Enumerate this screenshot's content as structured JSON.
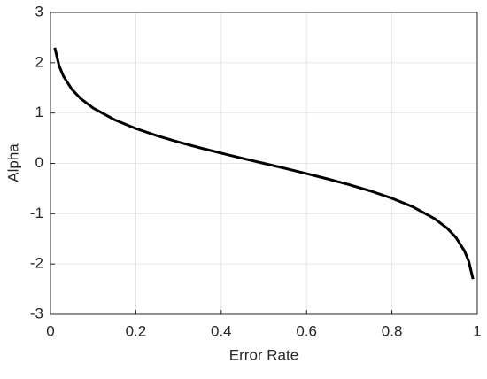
{
  "chart_data": {
    "type": "line",
    "xlabel": "Error Rate",
    "ylabel": "Alpha",
    "x": [
      0.01,
      0.02,
      0.03,
      0.05,
      0.07,
      0.1,
      0.15,
      0.2,
      0.25,
      0.3,
      0.35,
      0.4,
      0.45,
      0.5,
      0.55,
      0.6,
      0.65,
      0.7,
      0.75,
      0.8,
      0.85,
      0.9,
      0.93,
      0.95,
      0.97,
      0.98,
      0.99
    ],
    "series": [
      {
        "color": "#000000",
        "values": [
          2.298,
          1.946,
          1.738,
          1.472,
          1.293,
          1.099,
          0.867,
          0.693,
          0.549,
          0.424,
          0.31,
          0.203,
          0.1,
          0,
          -0.1,
          -0.203,
          -0.31,
          -0.424,
          -0.549,
          -0.693,
          -0.867,
          -1.099,
          -1.293,
          -1.472,
          -1.738,
          -1.946,
          -2.298
        ]
      }
    ],
    "xlim": [
      0,
      1
    ],
    "ylim": [
      -3,
      3
    ],
    "xticks": [
      0,
      0.2,
      0.4,
      0.6,
      0.8,
      1
    ],
    "yticks": [
      -3,
      -2,
      -1,
      0,
      1,
      2,
      3
    ],
    "grid": true
  }
}
